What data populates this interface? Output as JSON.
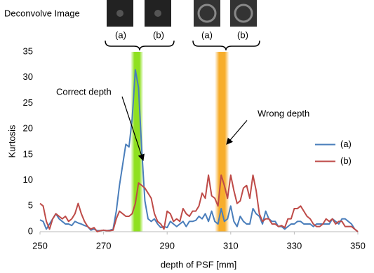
{
  "chart_data": {
    "type": "line",
    "image_panel": {
      "title": "Deconvolve Image",
      "labels": [
        "(a)",
        "(b)",
        "(a)",
        "(b)"
      ]
    },
    "annotations": [
      {
        "text": "Correct depth"
      },
      {
        "text": "Wrong depth"
      }
    ],
    "x_label": "depth of PSF [mm]",
    "y_label": "Kurtosis",
    "x": [
      250,
      251,
      252,
      253,
      254,
      255,
      256,
      257,
      258,
      259,
      260,
      261,
      262,
      263,
      264,
      265,
      266,
      267,
      268,
      269,
      270,
      271,
      272,
      273,
      274,
      275,
      276,
      277,
      278,
      279,
      280,
      281,
      282,
      283,
      284,
      285,
      286,
      287,
      288,
      289,
      290,
      291,
      292,
      293,
      294,
      295,
      296,
      297,
      298,
      299,
      300,
      301,
      302,
      303,
      304,
      305,
      306,
      307,
      308,
      309,
      310,
      311,
      312,
      313,
      314,
      315,
      316,
      317,
      318,
      319,
      320,
      321,
      322,
      323,
      324,
      325,
      326,
      327,
      328,
      329,
      330,
      331,
      332,
      333,
      334,
      335,
      336,
      337,
      338,
      339,
      340,
      341,
      342,
      343,
      344,
      345,
      346,
      347,
      348,
      349,
      350
    ],
    "series": [
      {
        "name": "(a)",
        "color": "#4a7ebb",
        "values": [
          2.3,
          2,
          0.5,
          1.5,
          2.5,
          3.5,
          2.5,
          2,
          1.5,
          1.5,
          1.2,
          2,
          1.7,
          1.5,
          1.2,
          1,
          0.3,
          0.5,
          0.2,
          0.2,
          0.3,
          0.2,
          0.3,
          0.5,
          4,
          9,
          13,
          17,
          16.5,
          22,
          31.5,
          28,
          16,
          6,
          2.5,
          2,
          2.5,
          1.5,
          0.8,
          1,
          0.8,
          2,
          1.5,
          1,
          1.5,
          2,
          1,
          2,
          2,
          2.2,
          3,
          2.5,
          3.5,
          2,
          4,
          2,
          1.5,
          4.5,
          2,
          2.5,
          5,
          2,
          1,
          3,
          2,
          1.5,
          1.5,
          4.5,
          3.5,
          3,
          1.5,
          4,
          2.5,
          2,
          2,
          1,
          1,
          0.5,
          1,
          1.5,
          1.5,
          2,
          2,
          1.5,
          1.5,
          1.5,
          1,
          1.5,
          1.5,
          1.5,
          1.5,
          1.5,
          2.5,
          2,
          1.5,
          2.5,
          2.5,
          2,
          1.5,
          0.5,
          0
        ]
      },
      {
        "name": "(b)",
        "color": "#be4b48",
        "values": [
          5.5,
          5,
          2,
          0.5,
          2.5,
          3.5,
          3,
          2.5,
          3,
          2,
          2.5,
          3.5,
          5.5,
          3.5,
          2,
          1,
          0.5,
          0.8,
          0,
          0.2,
          0.3,
          0.2,
          0.2,
          0.3,
          2.5,
          4,
          3.5,
          3,
          3,
          3.5,
          5.5,
          9.5,
          9,
          8.5,
          7.5,
          6.5,
          3.5,
          2,
          1.5,
          0.5,
          4,
          3.5,
          2,
          2.5,
          2,
          4.5,
          3.5,
          3,
          4,
          4,
          5,
          7.5,
          6.5,
          11,
          7,
          6.5,
          5,
          11,
          9,
          6.5,
          11,
          8,
          5.5,
          6,
          8.5,
          9,
          6.5,
          11,
          8,
          3.5,
          2,
          2.5,
          2.5,
          1.5,
          1.5,
          1,
          1.2,
          0.8,
          2.5,
          2.5,
          4.5,
          4.5,
          5,
          4,
          3,
          2.5,
          1.5,
          1,
          1,
          1.5,
          2.5,
          2,
          2.5,
          1.5,
          2,
          2,
          1,
          1,
          1,
          0.5,
          0
        ]
      }
    ],
    "highlight_bands": [
      {
        "x0": 278.5,
        "x1": 282.5,
        "color": "#8fe020"
      },
      {
        "x0": 305,
        "x1": 309.5,
        "color": "#f7ae2c"
      }
    ],
    "xlim": [
      250,
      350
    ],
    "xticks": [
      250,
      270,
      290,
      310,
      330,
      350
    ],
    "ylim": [
      0,
      35
    ],
    "yticks": [
      0,
      5,
      10,
      15,
      20,
      25,
      30,
      35
    ],
    "grid": false,
    "legend": "right"
  }
}
